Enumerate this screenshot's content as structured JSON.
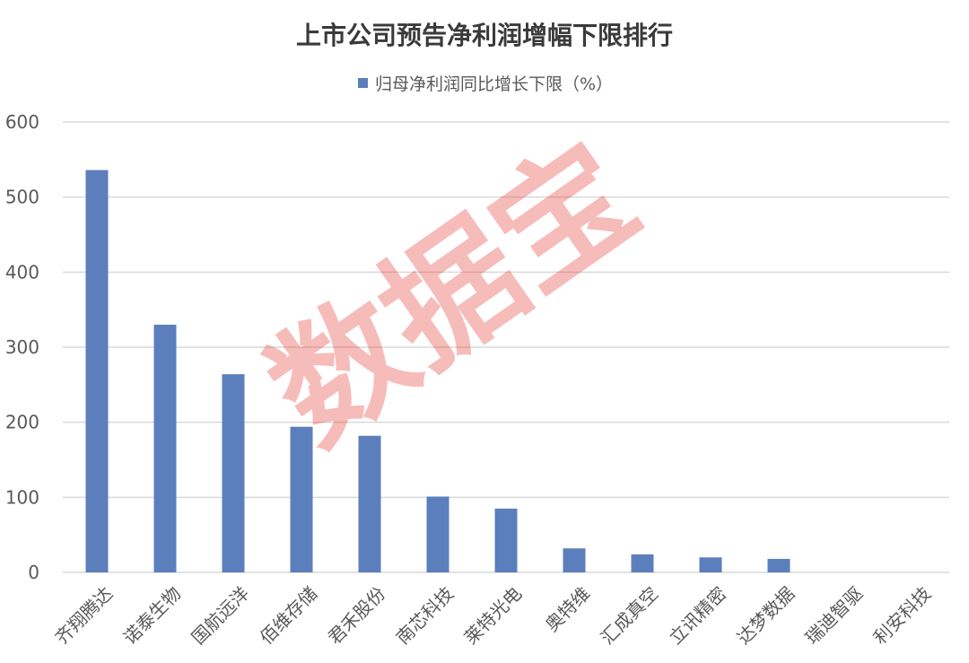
{
  "chart_data": {
    "type": "bar",
    "title": "上市公司预告净利润增幅下限排行",
    "legend": "归母净利润同比增长下限（%）",
    "legend_position": "top",
    "categories": [
      "齐翔腾达",
      "诺泰生物",
      "国航远洋",
      "佰维存储",
      "君禾股份",
      "南芯科技",
      "莱特光电",
      "奥特维",
      "汇成真空",
      "立讯精密",
      "达梦数据",
      "瑞迪智驱",
      "利安科技"
    ],
    "series": [
      {
        "name": "归母净利润同比增长下限（%）",
        "values": [
          536,
          330,
          264,
          194,
          182,
          101,
          85,
          32,
          24,
          20,
          18,
          0,
          0
        ]
      }
    ],
    "ylim": [
      0,
      600
    ],
    "yticks": [
      0,
      100,
      200,
      300,
      400,
      500,
      600
    ],
    "ytick_labels": [
      "0",
      "100",
      "200",
      "300",
      "400",
      "500",
      "600"
    ],
    "grid": true,
    "xlabel": "",
    "ylabel": "",
    "bar_color": "#5b7fbc"
  },
  "watermark": "数据宝",
  "watermark_color": "#e8413a"
}
